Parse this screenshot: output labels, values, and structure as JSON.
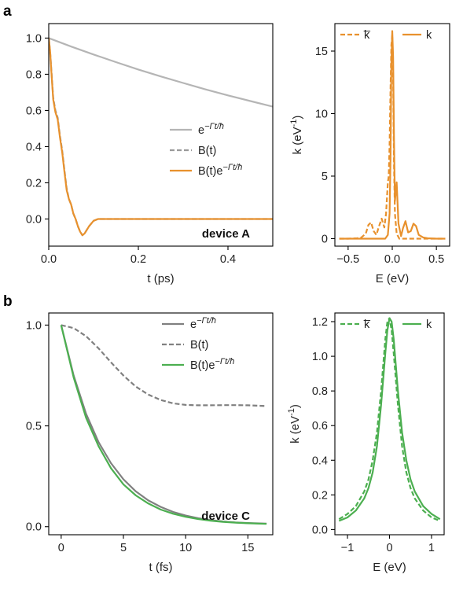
{
  "panels": {
    "a": {
      "label": "a",
      "device": "device A"
    },
    "b": {
      "label": "b",
      "device": "device C"
    }
  },
  "legend_labels": {
    "exp": "e−Γt/ħ",
    "b": "B(t)",
    "bexp": "B(t)e−Γt/ħ",
    "kbar": "k̅",
    "k": "k"
  },
  "colors": {
    "gray": "#a9a9a9",
    "darkgray": "#808080",
    "orange": "#e8912d",
    "green": "#4caf50"
  },
  "chart_data": [
    {
      "id": "a-time",
      "type": "line",
      "xlabel": "t (ps)",
      "ylabel": "",
      "xlim": [
        0,
        0.5
      ],
      "ylim": [
        -0.15,
        1.08
      ],
      "xticks": [
        0,
        0.2,
        0.4
      ],
      "xtick_labels": [
        "0.0",
        "0.2",
        "0.4"
      ],
      "yticks": [
        0,
        0.2,
        0.4,
        0.6,
        0.8,
        1.0
      ],
      "ytick_labels": [
        "0.0",
        "0.2",
        "0.4",
        "0.6",
        "0.8",
        "1.0"
      ],
      "annotation": "device A",
      "series": [
        {
          "key": "exp",
          "name": "e−Γt/ħ",
          "style": "solid",
          "color": "#b5b5b5",
          "x": [
            0,
            0.05,
            0.1,
            0.15,
            0.2,
            0.25,
            0.3,
            0.35,
            0.4,
            0.45,
            0.5
          ],
          "y": [
            1.0,
            0.953,
            0.909,
            0.867,
            0.826,
            0.788,
            0.752,
            0.716,
            0.683,
            0.652,
            0.621
          ]
        },
        {
          "key": "b",
          "name": "B(t)",
          "style": "dashed",
          "color": "#9a9a9a",
          "x": [
            0,
            0.003,
            0.006,
            0.01,
            0.015,
            0.02,
            0.025,
            0.03,
            0.035,
            0.04,
            0.045,
            0.05,
            0.055,
            0.06,
            0.065,
            0.07,
            0.075,
            0.08,
            0.09,
            0.1,
            0.11,
            0.12,
            0.13,
            0.14,
            0.16,
            0.2,
            0.3,
            0.4,
            0.5
          ],
          "y": [
            1.0,
            0.93,
            0.82,
            0.67,
            0.6,
            0.56,
            0.46,
            0.38,
            0.27,
            0.17,
            0.11,
            0.08,
            0.03,
            0.0,
            -0.04,
            -0.07,
            -0.09,
            -0.08,
            -0.04,
            -0.01,
            0.0,
            0.0,
            0.0,
            0.0,
            0.0,
            0.0,
            0.0,
            0.0,
            0.0
          ]
        },
        {
          "key": "bexp",
          "name": "B(t)e−Γt/ħ",
          "style": "solid",
          "color": "#e8912d",
          "x": [
            0,
            0.003,
            0.006,
            0.01,
            0.015,
            0.02,
            0.025,
            0.03,
            0.035,
            0.04,
            0.045,
            0.05,
            0.055,
            0.06,
            0.065,
            0.07,
            0.075,
            0.08,
            0.09,
            0.1,
            0.11,
            0.12,
            0.13,
            0.14,
            0.16,
            0.2,
            0.3,
            0.4,
            0.5
          ],
          "y": [
            1.0,
            0.93,
            0.81,
            0.66,
            0.59,
            0.55,
            0.45,
            0.37,
            0.26,
            0.16,
            0.11,
            0.08,
            0.03,
            0.0,
            -0.04,
            -0.07,
            -0.09,
            -0.08,
            -0.04,
            -0.01,
            0.0,
            0.0,
            0.0,
            0.0,
            0.0,
            0.0,
            0.0,
            0.0,
            0.0
          ]
        }
      ]
    },
    {
      "id": "a-spectrum",
      "type": "line",
      "xlabel": "E (eV)",
      "ylabel": "k (eV⁻¹)",
      "xlim": [
        -0.65,
        0.65
      ],
      "ylim": [
        -0.6,
        17.2
      ],
      "xticks": [
        -0.5,
        0,
        0.5
      ],
      "xtick_labels": [
        "−0.5",
        "0.0",
        "0.5"
      ],
      "yticks": [
        0,
        5,
        10,
        15
      ],
      "ytick_labels": [
        "0",
        "5",
        "10",
        "15"
      ],
      "series": [
        {
          "key": "kbar",
          "name": "k̅",
          "style": "dashed",
          "color": "#e8912d",
          "x": [
            -0.6,
            -0.5,
            -0.4,
            -0.35,
            -0.3,
            -0.27,
            -0.24,
            -0.21,
            -0.18,
            -0.15,
            -0.12,
            -0.09,
            -0.07,
            -0.05,
            -0.04,
            -0.03,
            -0.02,
            -0.01,
            0.0,
            0.01,
            0.02,
            0.03,
            0.05,
            0.08,
            0.15,
            0.3,
            0.6
          ],
          "y": [
            0,
            0,
            0.03,
            0.1,
            0.4,
            1.1,
            1.3,
            0.6,
            0.3,
            1.0,
            1.6,
            0.9,
            2.0,
            4.5,
            5.0,
            7.5,
            12.0,
            15.5,
            16.3,
            13.0,
            6.0,
            2.0,
            0.4,
            0.0,
            0.0,
            0.0,
            0.0
          ]
        },
        {
          "key": "k",
          "name": "k",
          "style": "solid",
          "color": "#e8912d",
          "x": [
            -0.6,
            -0.3,
            -0.15,
            -0.08,
            -0.05,
            -0.03,
            -0.02,
            -0.01,
            0.0,
            0.01,
            0.02,
            0.03,
            0.05,
            0.07,
            0.1,
            0.12,
            0.15,
            0.18,
            0.21,
            0.24,
            0.27,
            0.3,
            0.35,
            0.4,
            0.5,
            0.6
          ],
          "y": [
            0,
            0,
            0,
            0.0,
            0.3,
            2.0,
            6.5,
            14.0,
            16.6,
            14.5,
            8.0,
            3.0,
            4.5,
            1.2,
            0.2,
            0.8,
            1.4,
            0.5,
            0.6,
            1.2,
            1.0,
            0.3,
            0.1,
            0.03,
            0.0,
            0.0
          ]
        }
      ]
    },
    {
      "id": "b-time",
      "type": "line",
      "xlabel": "t (fs)",
      "ylabel": "",
      "xlim": [
        -1.0,
        17.0
      ],
      "ylim": [
        -0.04,
        1.06
      ],
      "xticks": [
        0,
        5,
        10,
        15
      ],
      "xtick_labels": [
        "0",
        "5",
        "10",
        "15"
      ],
      "yticks": [
        0.0,
        0.5,
        1.0
      ],
      "ytick_labels": [
        "0.0",
        "0.5",
        "1.0"
      ],
      "annotation": "device C",
      "series": [
        {
          "key": "exp",
          "name": "e−Γt/ħ",
          "style": "solid",
          "color": "#808080",
          "x": [
            0,
            1,
            2,
            3,
            4,
            5,
            6,
            7,
            8,
            9,
            10,
            11,
            12,
            13,
            14,
            15,
            16.5
          ],
          "y": [
            1.0,
            0.75,
            0.56,
            0.42,
            0.315,
            0.235,
            0.175,
            0.13,
            0.098,
            0.073,
            0.055,
            0.042,
            0.033,
            0.026,
            0.021,
            0.018,
            0.015
          ]
        },
        {
          "key": "b",
          "name": "B(t)",
          "style": "dashed",
          "color": "#808080",
          "x": [
            0,
            1,
            2,
            3,
            4,
            5,
            6,
            7,
            8,
            9,
            10,
            11,
            12,
            13,
            14,
            15,
            16.5
          ],
          "y": [
            1.0,
            0.985,
            0.945,
            0.885,
            0.815,
            0.75,
            0.695,
            0.655,
            0.628,
            0.612,
            0.604,
            0.602,
            0.602,
            0.603,
            0.603,
            0.602,
            0.598
          ]
        },
        {
          "key": "bexp",
          "name": "B(t)e−Γt/ħ",
          "style": "solid",
          "color": "#4caf50",
          "x": [
            0,
            1,
            2,
            3,
            4,
            5,
            6,
            7,
            8,
            9,
            10,
            11,
            12,
            13,
            14,
            15,
            16.5
          ],
          "y": [
            1.0,
            0.74,
            0.54,
            0.4,
            0.29,
            0.21,
            0.155,
            0.115,
            0.085,
            0.064,
            0.049,
            0.038,
            0.03,
            0.024,
            0.02,
            0.017,
            0.014
          ]
        }
      ]
    },
    {
      "id": "b-spectrum",
      "type": "line",
      "xlabel": "E (eV)",
      "ylabel": "k (eV⁻¹)",
      "xlim": [
        -1.3,
        1.3
      ],
      "ylim": [
        -0.03,
        1.25
      ],
      "xticks": [
        -1,
        0,
        1
      ],
      "xtick_labels": [
        "−1",
        "0",
        "1"
      ],
      "yticks": [
        0.0,
        0.2,
        0.4,
        0.6,
        0.8,
        1.0,
        1.2
      ],
      "ytick_labels": [
        "0.0",
        "0.2",
        "0.4",
        "0.6",
        "0.8",
        "1.0",
        "1.2"
      ],
      "series": [
        {
          "key": "kbar",
          "name": "k̅",
          "style": "dashed",
          "color": "#4caf50",
          "x": [
            -1.2,
            -1.0,
            -0.8,
            -0.6,
            -0.5,
            -0.4,
            -0.3,
            -0.2,
            -0.15,
            -0.1,
            -0.05,
            0.0,
            0.05,
            0.1,
            0.2,
            0.3,
            0.4,
            0.5,
            0.6,
            0.8,
            1.0,
            1.2
          ],
          "y": [
            0.06,
            0.09,
            0.135,
            0.22,
            0.29,
            0.4,
            0.56,
            0.8,
            0.95,
            1.1,
            1.2,
            1.22,
            1.15,
            1.02,
            0.72,
            0.48,
            0.33,
            0.24,
            0.18,
            0.11,
            0.07,
            0.05
          ]
        },
        {
          "key": "k",
          "name": "k",
          "style": "solid",
          "color": "#4caf50",
          "x": [
            -1.2,
            -1.0,
            -0.8,
            -0.6,
            -0.5,
            -0.4,
            -0.3,
            -0.2,
            -0.1,
            -0.05,
            0.0,
            0.05,
            0.1,
            0.15,
            0.2,
            0.3,
            0.4,
            0.5,
            0.6,
            0.8,
            1.0,
            1.2
          ],
          "y": [
            0.05,
            0.07,
            0.11,
            0.18,
            0.24,
            0.33,
            0.48,
            0.72,
            1.02,
            1.15,
            1.22,
            1.2,
            1.1,
            0.95,
            0.8,
            0.56,
            0.4,
            0.29,
            0.22,
            0.135,
            0.09,
            0.06
          ]
        }
      ]
    }
  ]
}
